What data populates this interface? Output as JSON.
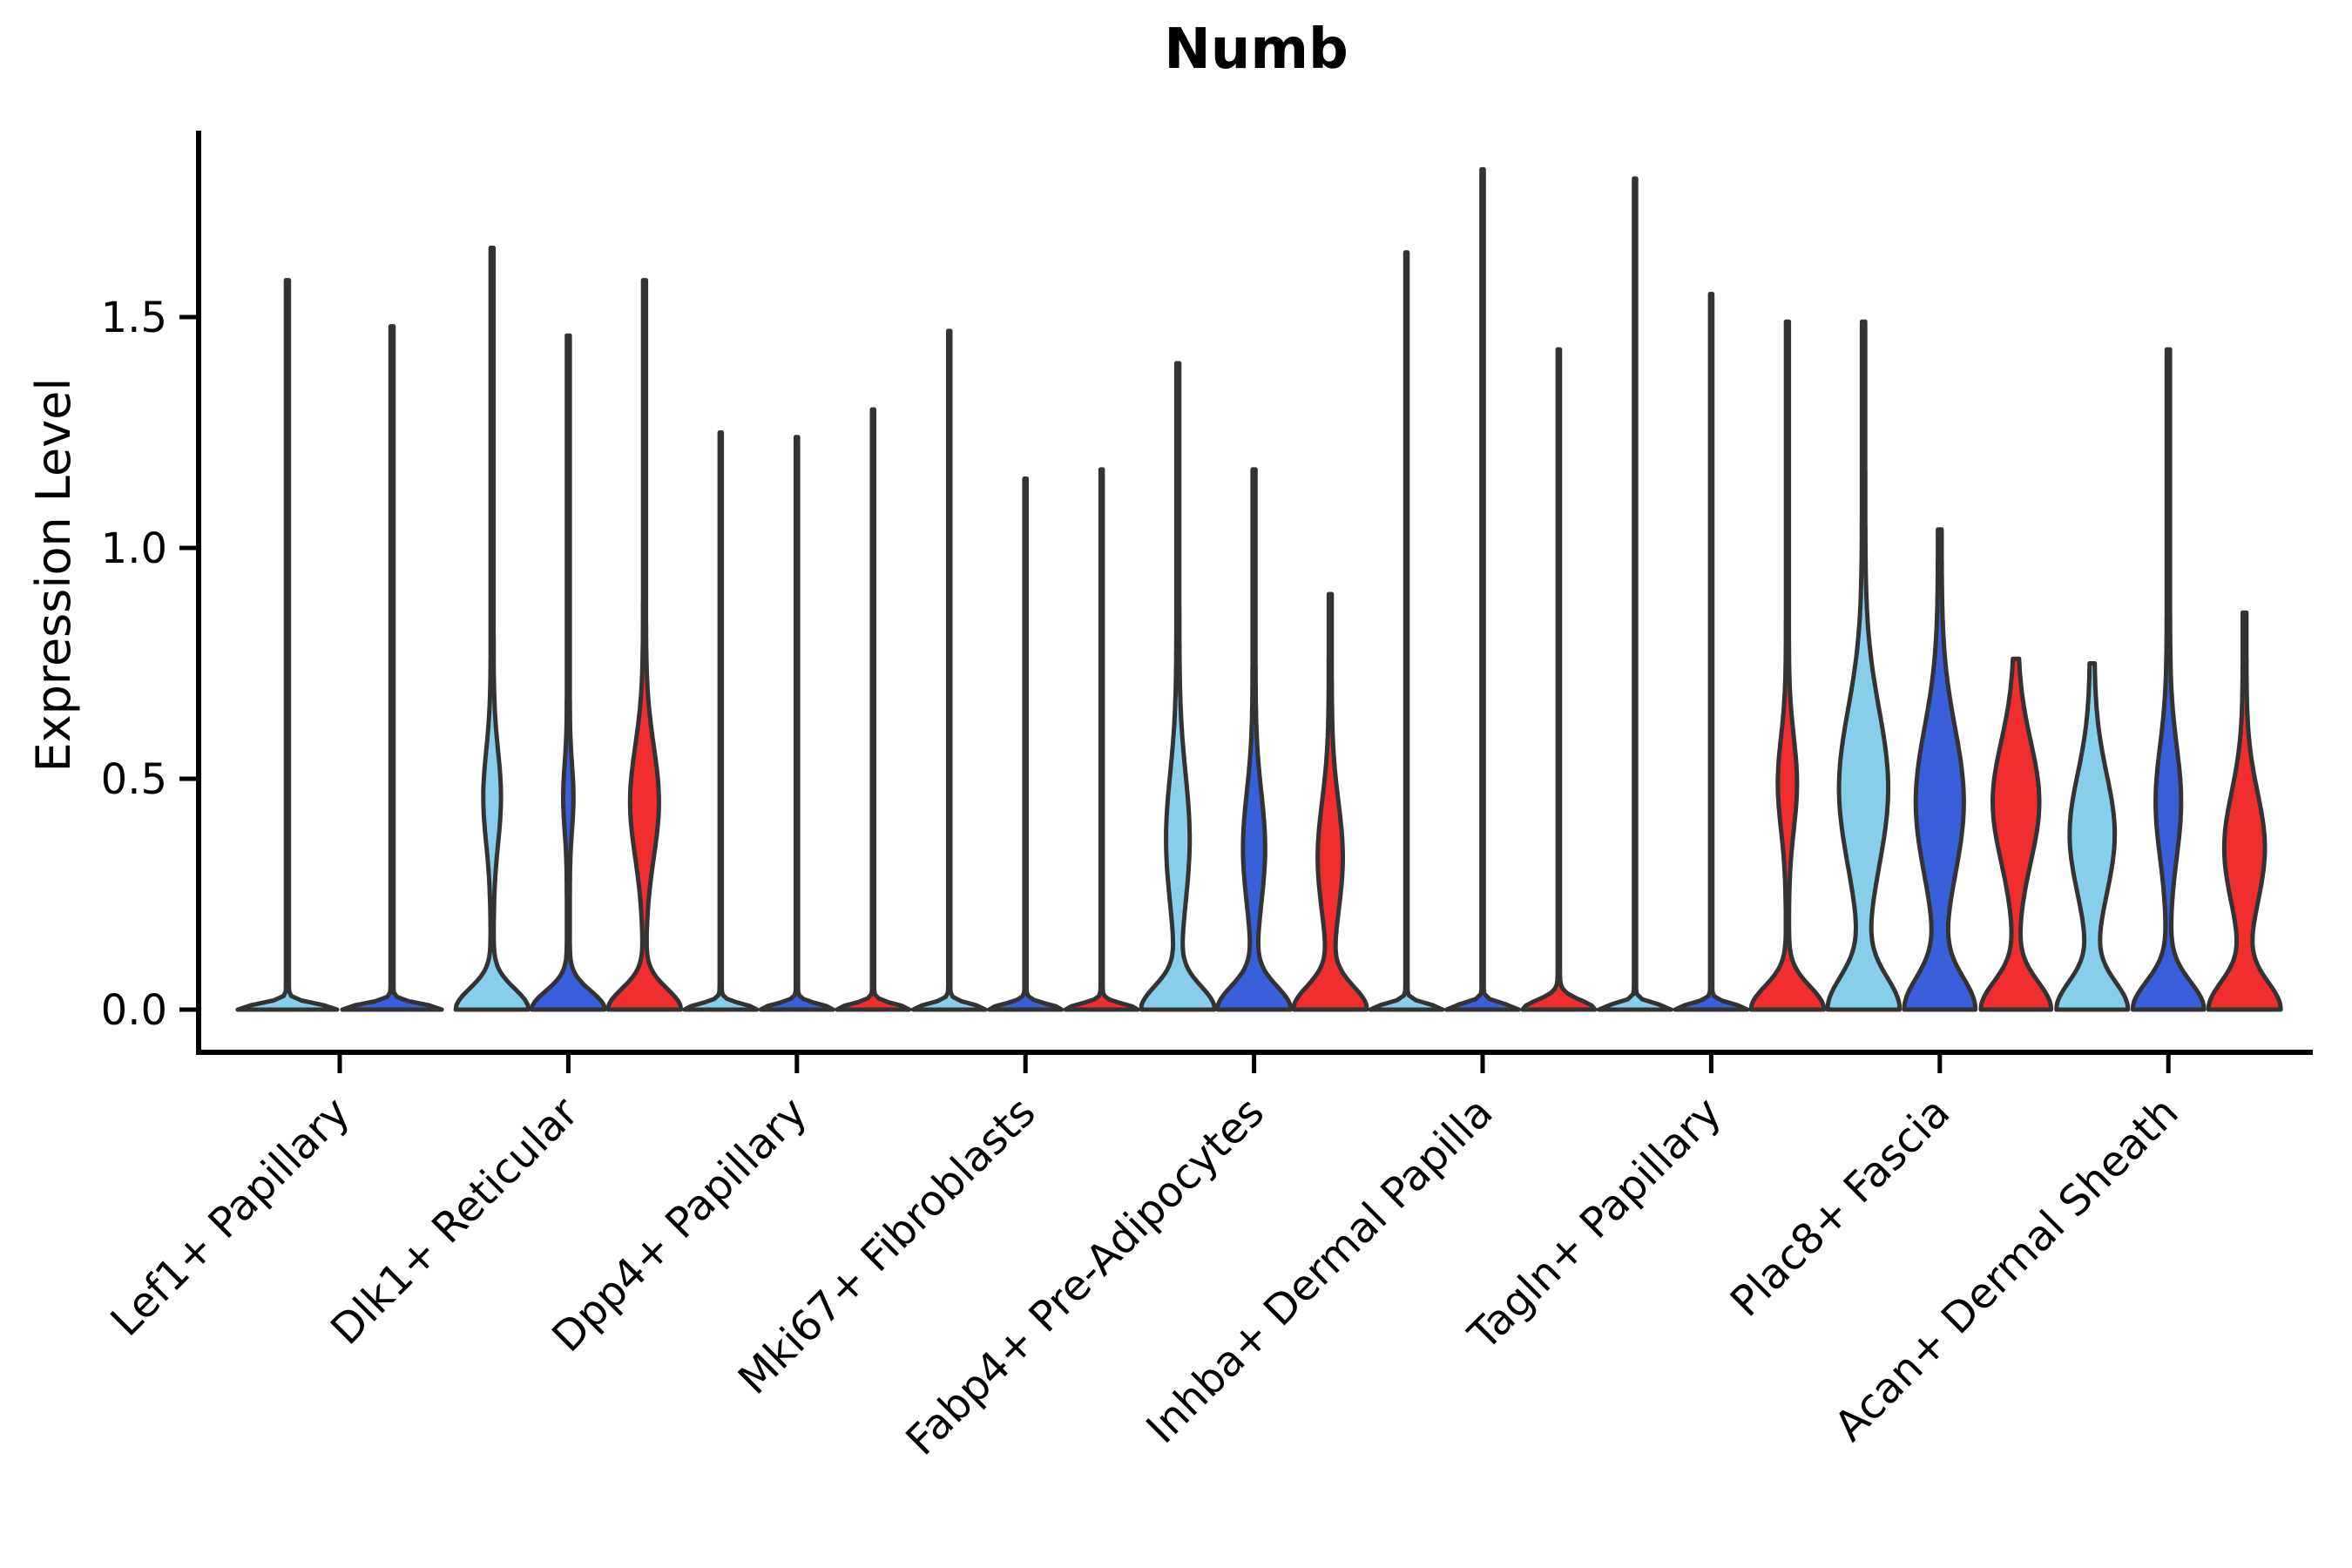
{
  "title": "Numb",
  "axes": {
    "ylabel": "Expression Level",
    "ytick_labels": [
      "0.0",
      "0.5",
      "1.0",
      "1.5"
    ]
  },
  "colors": {
    "light_blue": "#87CEEB",
    "dark_blue": "#3A5FDB",
    "red": "#F12E2E",
    "violin_outline": "#333333",
    "axis": "#000000"
  },
  "chart_data": {
    "type": "violin",
    "title": "Numb",
    "xlabel": "",
    "ylabel": "Expression Level",
    "ylim": [
      0,
      1.9
    ],
    "yticks": [
      0.0,
      0.5,
      1.0,
      1.5
    ],
    "ytick_labels": [
      "0.0",
      "0.5",
      "1.0",
      "1.5"
    ],
    "grid": false,
    "legend_position": "none",
    "series_colors": [
      "#87CEEB",
      "#3A5FDB",
      "#F12E2E"
    ],
    "categories": [
      "Lef1+ Papillary",
      "Dlk1+ Reticular",
      "Dpp4+ Papillary",
      "Mki67+ Fibroblasts",
      "Fabp4+ Pre-Adipocytes",
      "Inhba+ Dermal Papilla",
      "Tagln+ Papillary",
      "Plac8+ Fascia",
      "Acan+ Dermal Sheath"
    ],
    "groups": [
      {
        "category": "Lef1+ Papillary",
        "violins": [
          {
            "series": 0,
            "max": 1.58,
            "base": {
              "s": 0.012,
              "w": 0.95
            },
            "bulge": null,
            "floor": 0.03
          },
          {
            "series": 1,
            "max": 1.48,
            "base": {
              "s": 0.012,
              "w": 0.95
            },
            "bulge": null,
            "floor": 0.03
          }
        ]
      },
      {
        "category": "Dlk1+ Reticular",
        "violins": [
          {
            "series": 0,
            "max": 1.65,
            "base": {
              "s": 0.045,
              "w": 0.95
            },
            "bulge": {
              "c": 0.46,
              "s": 0.1,
              "w": 0.2
            },
            "floor": 0.04
          },
          {
            "series": 1,
            "max": 1.46,
            "base": {
              "s": 0.04,
              "w": 0.95
            },
            "bulge": {
              "c": 0.46,
              "s": 0.07,
              "w": 0.1
            },
            "floor": 0.04
          },
          {
            "series": 2,
            "max": 1.58,
            "base": {
              "s": 0.045,
              "w": 0.95
            },
            "bulge": {
              "c": 0.45,
              "s": 0.12,
              "w": 0.35
            },
            "floor": 0.04
          }
        ]
      },
      {
        "category": "Dpp4+ Papillary",
        "violins": [
          {
            "series": 0,
            "max": 1.25,
            "base": {
              "s": 0.012,
              "w": 0.95
            },
            "bulge": null,
            "floor": 0.03
          },
          {
            "series": 1,
            "max": 1.24,
            "base": {
              "s": 0.012,
              "w": 0.95
            },
            "bulge": null,
            "floor": 0.03
          },
          {
            "series": 2,
            "max": 1.3,
            "base": {
              "s": 0.012,
              "w": 0.95
            },
            "bulge": null,
            "floor": 0.03
          }
        ]
      },
      {
        "category": "Mki67+ Fibroblasts",
        "violins": [
          {
            "series": 0,
            "max": 1.47,
            "base": {
              "s": 0.012,
              "w": 0.95
            },
            "bulge": null,
            "floor": 0.03
          },
          {
            "series": 1,
            "max": 1.15,
            "base": {
              "s": 0.012,
              "w": 0.95
            },
            "bulge": null,
            "floor": 0.03
          },
          {
            "series": 2,
            "max": 1.17,
            "base": {
              "s": 0.012,
              "w": 0.95
            },
            "bulge": null,
            "floor": 0.03
          }
        ]
      },
      {
        "category": "Fabp4+ Pre-Adipocytes",
        "violins": [
          {
            "series": 0,
            "max": 1.4,
            "base": {
              "s": 0.05,
              "w": 0.95
            },
            "bulge": {
              "c": 0.37,
              "s": 0.14,
              "w": 0.28
            },
            "floor": 0.04
          },
          {
            "series": 1,
            "max": 1.17,
            "base": {
              "s": 0.05,
              "w": 0.95
            },
            "bulge": {
              "c": 0.35,
              "s": 0.12,
              "w": 0.26
            },
            "floor": 0.04
          },
          {
            "series": 2,
            "max": 0.9,
            "base": {
              "s": 0.05,
              "w": 0.95
            },
            "bulge": {
              "c": 0.33,
              "s": 0.12,
              "w": 0.3
            },
            "floor": 0.04
          }
        ]
      },
      {
        "category": "Inhba+ Dermal Papilla",
        "violins": [
          {
            "series": 0,
            "max": 1.64,
            "base": {
              "s": 0.012,
              "w": 0.95
            },
            "bulge": null,
            "floor": 0.03
          },
          {
            "series": 1,
            "max": 1.82,
            "base": {
              "s": 0.012,
              "w": 0.95
            },
            "bulge": null,
            "floor": 0.03
          },
          {
            "series": 2,
            "max": 1.43,
            "base": {
              "s": 0.02,
              "w": 0.95
            },
            "bulge": null,
            "floor": 0.032
          }
        ]
      },
      {
        "category": "Tagln+ Papillary",
        "violins": [
          {
            "series": 0,
            "max": 1.8,
            "base": {
              "s": 0.012,
              "w": 0.95
            },
            "bulge": null,
            "floor": 0.03
          },
          {
            "series": 1,
            "max": 1.55,
            "base": {
              "s": 0.012,
              "w": 0.95
            },
            "bulge": null,
            "floor": 0.03
          },
          {
            "series": 2,
            "max": 1.49,
            "base": {
              "s": 0.05,
              "w": 0.95
            },
            "bulge": {
              "c": 0.49,
              "s": 0.1,
              "w": 0.22
            },
            "floor": 0.04
          }
        ]
      },
      {
        "category": "Plac8+ Fascia",
        "violins": [
          {
            "series": 0,
            "max": 1.49,
            "base": {
              "s": 0.07,
              "w": 0.92
            },
            "bulge": {
              "c": 0.48,
              "s": 0.17,
              "w": 0.62
            },
            "floor": 0.045
          },
          {
            "series": 1,
            "max": 1.04,
            "base": {
              "s": 0.07,
              "w": 0.9
            },
            "bulge": {
              "c": 0.45,
              "s": 0.16,
              "w": 0.6
            },
            "floor": 0.05
          },
          {
            "series": 2,
            "max": 0.76,
            "base": {
              "s": 0.06,
              "w": 0.9
            },
            "bulge": {
              "c": 0.45,
              "s": 0.13,
              "w": 0.58
            },
            "floor": 0.05
          }
        ]
      },
      {
        "category": "Acan+ Dermal Sheath",
        "violins": [
          {
            "series": 0,
            "max": 0.75,
            "base": {
              "s": 0.06,
              "w": 0.9
            },
            "bulge": {
              "c": 0.38,
              "s": 0.13,
              "w": 0.55
            },
            "floor": 0.06
          },
          {
            "series": 1,
            "max": 1.43,
            "base": {
              "s": 0.06,
              "w": 0.92
            },
            "bulge": {
              "c": 0.45,
              "s": 0.12,
              "w": 0.3
            },
            "floor": 0.045
          },
          {
            "series": 2,
            "max": 0.86,
            "base": {
              "s": 0.06,
              "w": 0.92
            },
            "bulge": {
              "c": 0.35,
              "s": 0.12,
              "w": 0.5
            },
            "floor": 0.05
          }
        ]
      }
    ]
  }
}
